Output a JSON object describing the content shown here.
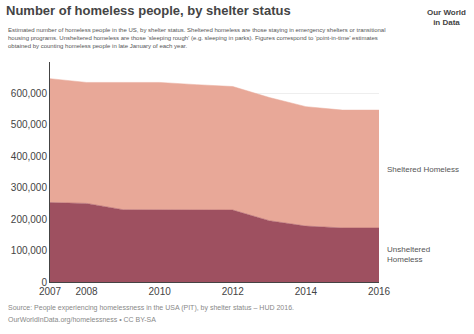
{
  "chart_data": {
    "type": "area",
    "stacked": true,
    "title": "Number of homeless people, by shelter status",
    "subtitle": "Estimated number of homeless people in the US, by shelter status. Sheltered homeless are those staying in emergency shelters or transitional\nhousing programs. Unsheltered homeless are those ‘sleeping rough’ (e.g. sleeping in parks). Figures correspond to ‘point-in-time’ estimates\nobtained by counting homeless people in late January of each year.",
    "annotations": [
      "Source: People experiencing homelessness in the USA (PIT), by shelter status – HUD 2016.",
      "OurWorldInData.org/homelessness • CC BY-SA",
      "Our World",
      "in Data"
    ],
    "x": [
      2007,
      2008,
      2009,
      2010,
      2011,
      2012,
      2013,
      2014,
      2015,
      2016
    ],
    "series": [
      {
        "name": "Unsheltered\nHomeless",
        "color": "#9e5060",
        "values": [
          253000,
          250000,
          230000,
          229000,
          228000,
          229000,
          195000,
          178000,
          172000,
          172000
        ]
      },
      {
        "name": "Sheltered Homeless",
        "color": "#e8a898",
        "values": [
          394000,
          385000,
          405000,
          406000,
          400000,
          393000,
          392000,
          380000,
          375000,
          375000
        ]
      }
    ],
    "xlim": [
      2007,
      2016
    ],
    "xticks": [
      2007,
      2008,
      2010,
      2012,
      2014,
      2016
    ],
    "ylim": [
      0,
      700000
    ],
    "yticks": [
      0,
      {
        "value": 100000,
        "label": "100,000"
      },
      {
        "value": 200000,
        "label": "200,000"
      },
      {
        "value": 300000,
        "label": "300,000"
      },
      {
        "value": 400000,
        "label": "400,000"
      },
      {
        "value": 500000,
        "label": "500,000"
      },
      {
        "value": 600000,
        "label": "600,000"
      }
    ],
    "grid": true
  }
}
